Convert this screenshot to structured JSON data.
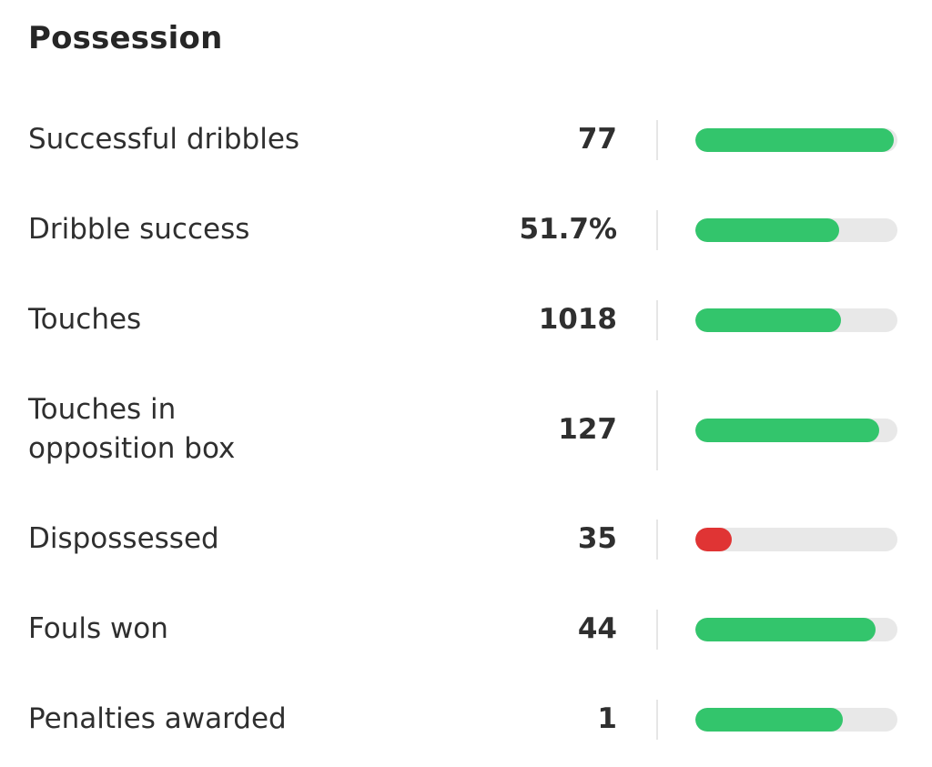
{
  "section": {
    "title": "Possession"
  },
  "colors": {
    "good": "#33c56c",
    "bad": "#e03434",
    "track": "#e8e8e8"
  },
  "stats": [
    {
      "label": "Successful dribbles",
      "value": "77",
      "level": 0.98,
      "status": "good"
    },
    {
      "label": "Dribble success",
      "value": "51.7%",
      "level": 0.71,
      "status": "good"
    },
    {
      "label": "Touches",
      "value": "1018",
      "level": 0.72,
      "status": "good"
    },
    {
      "label": "Touches in\nopposition box",
      "value": "127",
      "level": 0.91,
      "status": "good"
    },
    {
      "label": "Dispossessed",
      "value": "35",
      "level": 0.18,
      "status": "bad"
    },
    {
      "label": "Fouls won",
      "value": "44",
      "level": 0.89,
      "status": "good"
    },
    {
      "label": "Penalties awarded",
      "value": "1",
      "level": 0.73,
      "status": "good"
    }
  ]
}
